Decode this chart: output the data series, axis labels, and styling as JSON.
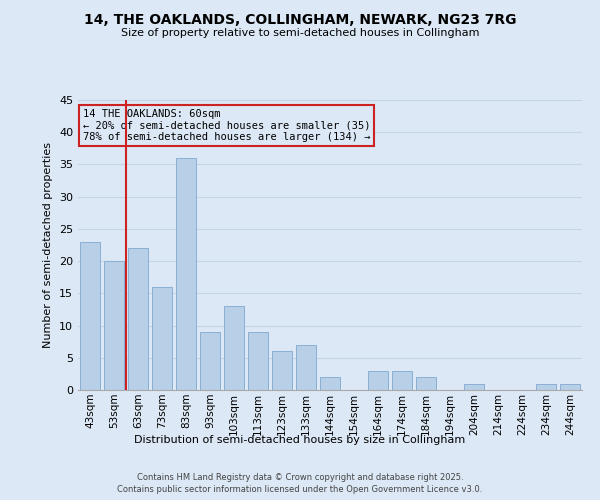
{
  "title_line1": "14, THE OAKLANDS, COLLINGHAM, NEWARK, NG23 7RG",
  "title_line2": "Size of property relative to semi-detached houses in Collingham",
  "xlabel": "Distribution of semi-detached houses by size in Collingham",
  "ylabel": "Number of semi-detached properties",
  "categories": [
    "43sqm",
    "53sqm",
    "63sqm",
    "73sqm",
    "83sqm",
    "93sqm",
    "103sqm",
    "113sqm",
    "123sqm",
    "133sqm",
    "144sqm",
    "154sqm",
    "164sqm",
    "174sqm",
    "184sqm",
    "194sqm",
    "204sqm",
    "214sqm",
    "224sqm",
    "234sqm",
    "244sqm"
  ],
  "values": [
    23,
    20,
    22,
    16,
    36,
    9,
    13,
    9,
    6,
    7,
    2,
    0,
    3,
    3,
    2,
    0,
    1,
    0,
    0,
    1,
    1
  ],
  "bar_color": "#b8cfe8",
  "bar_edge_color": "#8aafd4",
  "red_line_x": 1.5,
  "red_line_color": "#cc2222",
  "annotation_text": "14 THE OAKLANDS: 60sqm\n← 20% of semi-detached houses are smaller (35)\n78% of semi-detached houses are larger (134) →",
  "annotation_box_facecolor": "#dce8f5",
  "annotation_box_edgecolor": "#cc2222",
  "background_color": "#dce8f5",
  "grid_color": "#c5d5e8",
  "footer_line1": "Contains HM Land Registry data © Crown copyright and database right 2025.",
  "footer_line2": "Contains public sector information licensed under the Open Government Licence v3.0.",
  "ylim": [
    0,
    45
  ],
  "yticks": [
    0,
    5,
    10,
    15,
    20,
    25,
    30,
    35,
    40,
    45
  ]
}
